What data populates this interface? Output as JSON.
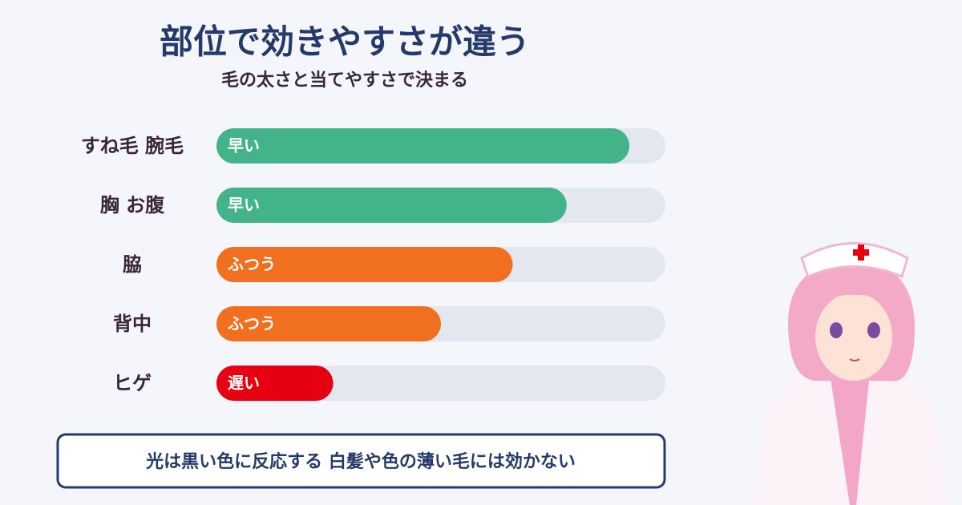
{
  "chart_data": {
    "type": "bar",
    "orientation": "horizontal",
    "title": "部位で効きやすさが違う",
    "subtitle": "毛の太さと当てやすさで決まる",
    "categories": [
      "すね毛 腕毛",
      "胸 お腹",
      "脇",
      "背中",
      "ヒゲ"
    ],
    "values": [
      92,
      78,
      66,
      50,
      26
    ],
    "ratings": [
      "早い",
      "早い",
      "ふつう",
      "ふつう",
      "遅い"
    ],
    "colors": [
      "#43b38a",
      "#43b38a",
      "#f07020",
      "#f07020",
      "#e60012"
    ],
    "xlim": [
      0,
      100
    ],
    "note": "光は黒い色に反応する 白髪や色の薄い毛には効かない"
  }
}
